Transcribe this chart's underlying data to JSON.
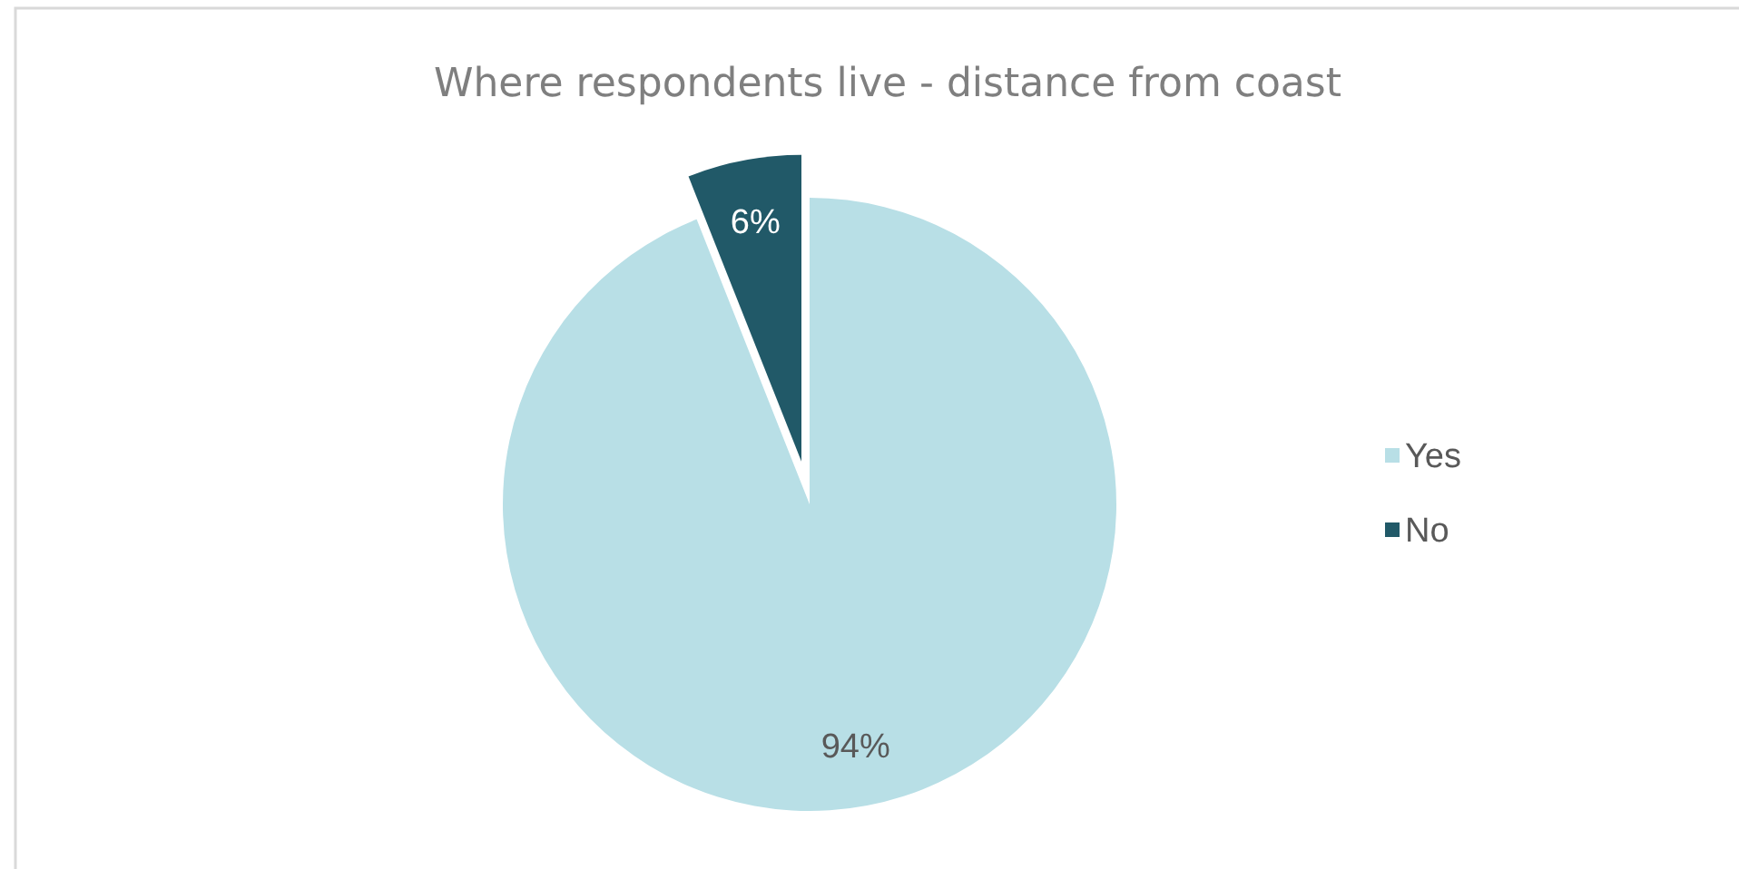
{
  "chart_data": {
    "type": "pie",
    "title": "Where respondents live - distance from coast",
    "categories": [
      "Yes",
      "No"
    ],
    "values": [
      94,
      6
    ],
    "colors": [
      "#b8dfe6",
      "#215968"
    ],
    "value_labels": [
      "94%",
      "6%"
    ],
    "legend": "right"
  }
}
